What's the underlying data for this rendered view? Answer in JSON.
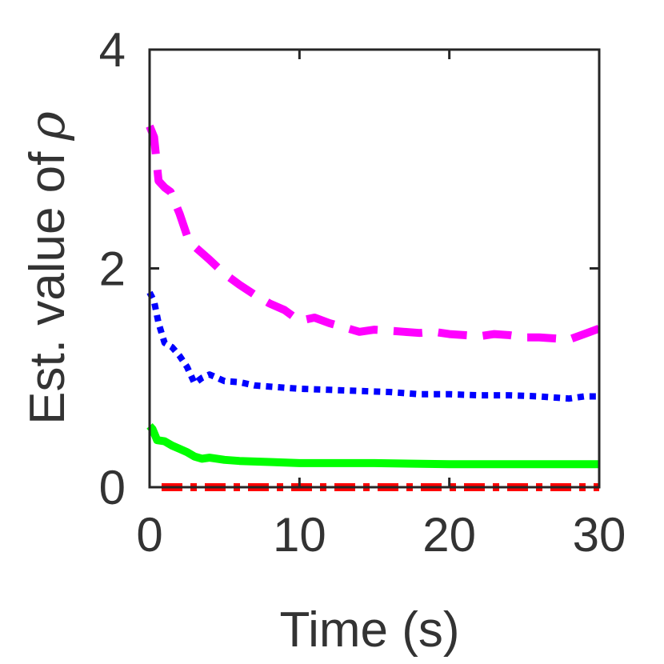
{
  "chart_data": {
    "type": "line",
    "title": "",
    "xlabel": "Time (s)",
    "ylabel": "Est. value of",
    "ylabel_symbol": "ρ",
    "xlim": [
      0,
      30
    ],
    "ylim": [
      0,
      4
    ],
    "xticks": [
      0,
      10,
      20,
      30
    ],
    "yticks": [
      0,
      2,
      4
    ],
    "grid": false,
    "legend": "none",
    "series": [
      {
        "name": "magenta-dashed",
        "color": "#ff00ff",
        "style": "dashed",
        "x": [
          0,
          0.3,
          0.6,
          1,
          1.4,
          2,
          2.5,
          3,
          4,
          5,
          6,
          7,
          8,
          9,
          10,
          11,
          12,
          13,
          14,
          15,
          16,
          17,
          18,
          19,
          20,
          21,
          22,
          23,
          24,
          25,
          26,
          27,
          28,
          29,
          30
        ],
        "values": [
          3.3,
          3.2,
          2.8,
          2.74,
          2.7,
          2.5,
          2.3,
          2.2,
          2.08,
          1.95,
          1.85,
          1.76,
          1.68,
          1.62,
          1.52,
          1.55,
          1.5,
          1.46,
          1.42,
          1.44,
          1.43,
          1.42,
          1.41,
          1.42,
          1.4,
          1.39,
          1.38,
          1.4,
          1.39,
          1.37,
          1.37,
          1.36,
          1.35,
          1.4,
          1.45
        ]
      },
      {
        "name": "blue-dotted",
        "color": "#0000ff",
        "style": "dotted",
        "x": [
          0,
          0.3,
          0.6,
          1,
          1.5,
          2,
          2.5,
          3,
          3.5,
          4,
          5,
          6,
          7,
          8,
          9,
          10,
          12,
          14,
          16,
          18,
          20,
          22,
          24,
          26,
          27,
          28,
          29,
          30
        ],
        "values": [
          1.78,
          1.7,
          1.5,
          1.32,
          1.28,
          1.2,
          1.1,
          0.95,
          1.0,
          1.03,
          0.97,
          0.96,
          0.93,
          0.92,
          0.91,
          0.9,
          0.89,
          0.88,
          0.87,
          0.85,
          0.85,
          0.84,
          0.84,
          0.83,
          0.82,
          0.81,
          0.83,
          0.83
        ]
      },
      {
        "name": "green-solid",
        "color": "#00ff00",
        "style": "solid",
        "x": [
          0,
          0.2,
          0.5,
          1,
          1.5,
          2,
          2.5,
          3,
          3.5,
          4,
          5,
          6,
          8,
          10,
          15,
          20,
          25,
          30
        ],
        "values": [
          0.56,
          0.53,
          0.43,
          0.42,
          0.38,
          0.35,
          0.32,
          0.28,
          0.26,
          0.27,
          0.25,
          0.24,
          0.23,
          0.22,
          0.22,
          0.21,
          0.21,
          0.21
        ]
      },
      {
        "name": "red-dashdot",
        "color": "#ff0000",
        "style": "dashdot",
        "x": [
          0.8,
          30
        ],
        "values": [
          0.0,
          0.0
        ]
      }
    ]
  }
}
